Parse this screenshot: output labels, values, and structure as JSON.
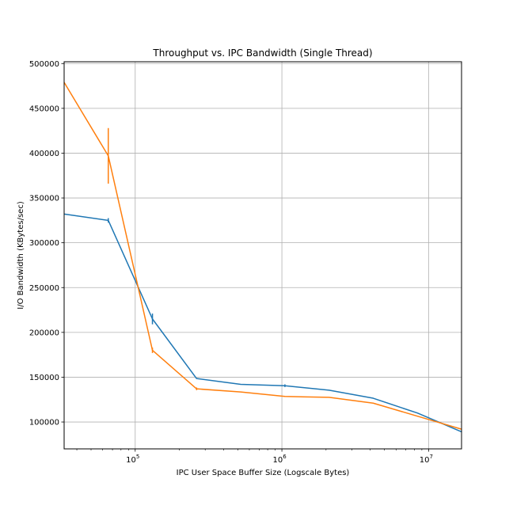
{
  "chart_data": {
    "type": "line",
    "title": "Throughput vs. IPC Bandwidth (Single Thread)",
    "xlabel": "IPC User Space Buffer Size (Logscale Bytes)",
    "ylabel": "I/O Bandwidth (KBytes/sec)",
    "xscale": "log",
    "xlim": [
      32768,
      16777216
    ],
    "ylim": [
      70000,
      502000
    ],
    "grid": true,
    "legend": "none",
    "x_ticks": [
      {
        "value": 100000,
        "base": "10",
        "exp": "5"
      },
      {
        "value": 1000000,
        "base": "10",
        "exp": "6"
      },
      {
        "value": 10000000,
        "base": "10",
        "exp": "7"
      }
    ],
    "y_ticks": [
      {
        "value": 100000,
        "label": "100000"
      },
      {
        "value": 150000,
        "label": "150000"
      },
      {
        "value": 200000,
        "label": "200000"
      },
      {
        "value": 250000,
        "label": "250000"
      },
      {
        "value": 300000,
        "label": "300000"
      },
      {
        "value": 350000,
        "label": "350000"
      },
      {
        "value": 400000,
        "label": "400000"
      },
      {
        "value": 450000,
        "label": "450000"
      },
      {
        "value": 500000,
        "label": "500000"
      }
    ],
    "x": [
      32768,
      65536,
      131072,
      262144,
      524288,
      1048576,
      2097152,
      4194304,
      8388608,
      16777216
    ],
    "series": [
      {
        "color": "#1f77b4",
        "values": [
          332000,
          325000,
          215000,
          148500,
          142000,
          140500,
          135500,
          126500,
          110000,
          89000
        ],
        "errors": [
          0,
          2500,
          6000,
          0,
          0,
          1500,
          0,
          0,
          0,
          0
        ]
      },
      {
        "color": "#ff7f0e",
        "values": [
          479000,
          397000,
          180000,
          137000,
          133500,
          128500,
          127500,
          121000,
          106500,
          92000
        ],
        "errors": [
          0,
          31000,
          3000,
          1500,
          0,
          0,
          0,
          0,
          0,
          0
        ]
      }
    ]
  }
}
